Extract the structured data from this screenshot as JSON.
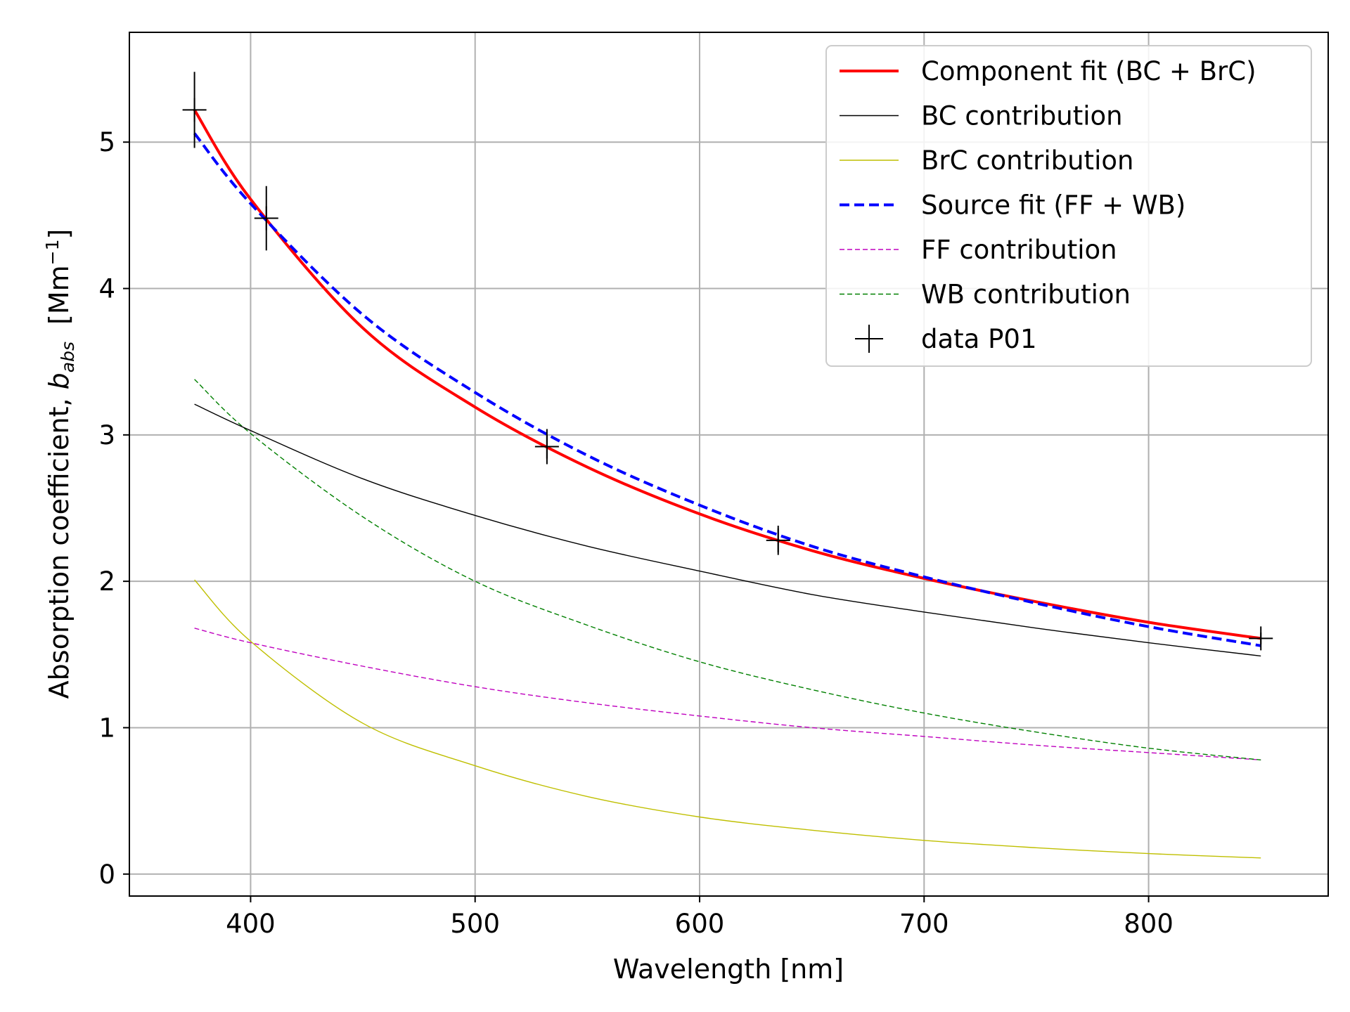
{
  "chart_data": {
    "type": "line",
    "xlabel": "Wavelength [nm]",
    "ylabel": {
      "prefix": "Absorption coefficient, ",
      "symbol": "b",
      "subscript": "abs",
      "unit_open": "[Mm",
      "unit_exponent": "−1",
      "unit_close": "]"
    },
    "xlim": [
      346,
      880
    ],
    "ylim": [
      -0.15,
      5.75
    ],
    "xticks": [
      400,
      500,
      600,
      700,
      800
    ],
    "yticks": [
      0,
      1,
      2,
      3,
      4,
      5
    ],
    "grid": true,
    "legend_position": "top-right",
    "series": [
      {
        "name": "Component fit (BC + BrC)",
        "kind": "line",
        "color": "#ff0000",
        "dash": "solid",
        "x": [
          375,
          400,
          450,
          500,
          550,
          600,
          650,
          700,
          750,
          800,
          850
        ],
        "y": [
          5.22,
          4.61,
          3.73,
          3.19,
          2.78,
          2.46,
          2.21,
          2.02,
          1.86,
          1.72,
          1.61
        ]
      },
      {
        "name": "BC contribution",
        "kind": "line",
        "color": "#000000",
        "dash": "solid",
        "x": [
          375,
          400,
          450,
          500,
          550,
          600,
          650,
          700,
          750,
          800,
          850
        ],
        "y": [
          3.21,
          3.03,
          2.7,
          2.45,
          2.24,
          2.07,
          1.91,
          1.79,
          1.68,
          1.58,
          1.49
        ]
      },
      {
        "name": "BrC contribution",
        "kind": "line",
        "color": "#bfbf00",
        "dash": "solid",
        "x": [
          375,
          400,
          450,
          500,
          550,
          600,
          650,
          700,
          750,
          800,
          850
        ],
        "y": [
          2.01,
          1.59,
          1.03,
          0.74,
          0.53,
          0.39,
          0.3,
          0.23,
          0.18,
          0.14,
          0.11
        ]
      },
      {
        "name": "Source fit (FF + WB)",
        "kind": "line",
        "color": "#0000ff",
        "dash": "dashed",
        "x": [
          375,
          400,
          450,
          500,
          550,
          600,
          650,
          700,
          750,
          800,
          850
        ],
        "y": [
          5.06,
          4.58,
          3.82,
          3.29,
          2.86,
          2.52,
          2.24,
          2.03,
          1.85,
          1.69,
          1.56
        ]
      },
      {
        "name": "FF contribution",
        "kind": "line",
        "color": "#bf00bf",
        "dash": "dashed",
        "x": [
          375,
          400,
          450,
          500,
          550,
          600,
          650,
          700,
          750,
          800,
          850
        ],
        "y": [
          1.68,
          1.58,
          1.42,
          1.28,
          1.17,
          1.08,
          1.0,
          0.94,
          0.88,
          0.83,
          0.78
        ]
      },
      {
        "name": "WB contribution",
        "kind": "line",
        "color": "#008000",
        "dash": "dashed",
        "x": [
          375,
          400,
          450,
          500,
          550,
          600,
          650,
          700,
          750,
          800,
          850
        ],
        "y": [
          3.38,
          3.01,
          2.44,
          2.0,
          1.7,
          1.45,
          1.26,
          1.1,
          0.97,
          0.86,
          0.78
        ]
      },
      {
        "name": "data P01",
        "kind": "marker",
        "color": "#000000",
        "x": [
          375,
          407,
          532,
          635,
          850
        ],
        "y": [
          5.22,
          4.48,
          2.92,
          2.28,
          1.61
        ],
        "yerr": [
          0.26,
          0.22,
          0.12,
          0.1,
          0.04
        ]
      }
    ]
  }
}
